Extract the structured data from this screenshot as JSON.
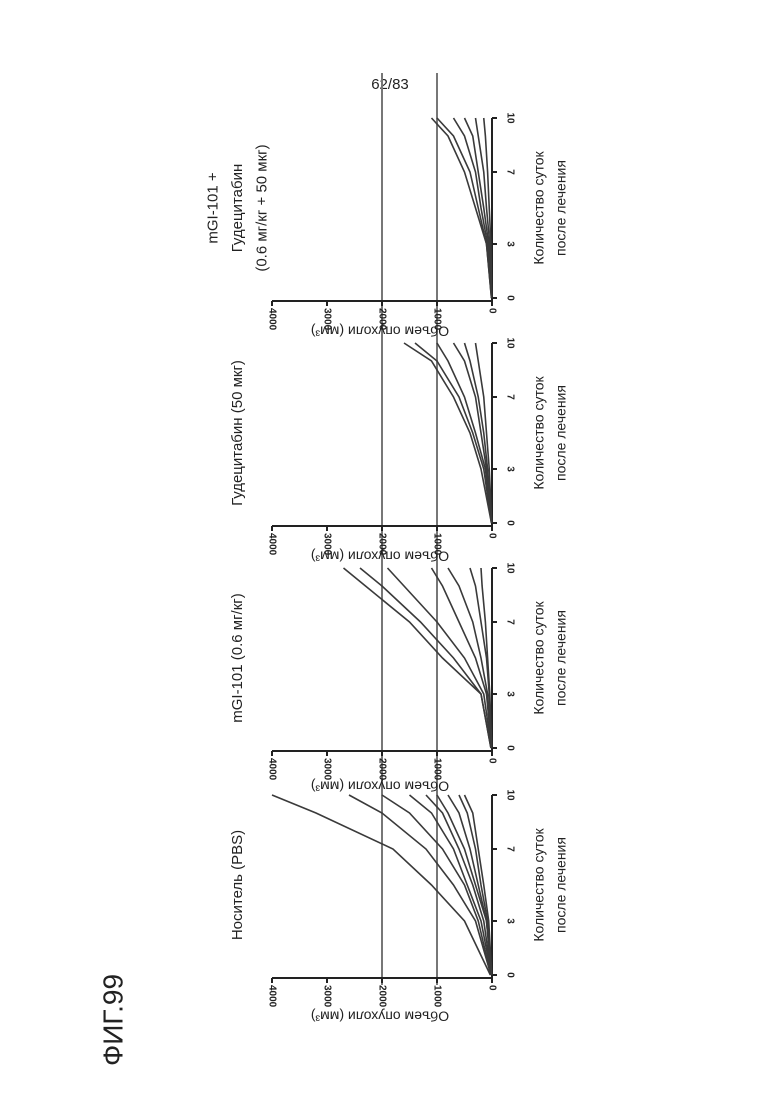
{
  "page_number": "62/83",
  "figure_label": "ФИГ.99",
  "chart_data": [
    {
      "type": "line",
      "title": [
        "Носитель (PBS)"
      ],
      "xlabel": [
        "Количество суток",
        "после лечения"
      ],
      "ylabel": "Объем опухоли (мм³)",
      "x": [
        0,
        3,
        5,
        7,
        9,
        10
      ],
      "xlim": [
        0,
        10
      ],
      "xticks": [
        0,
        3,
        7,
        10
      ],
      "ylim": [
        0,
        4000
      ],
      "yticks": [
        0,
        1000,
        2000,
        3000,
        4000
      ],
      "hlines": [
        1000,
        2000
      ],
      "line_color": "#3a3a3a",
      "series": [
        {
          "values": [
            30,
            500,
            1100,
            1800,
            3200,
            4000
          ]
        },
        {
          "values": [
            20,
            300,
            700,
            1200,
            2000,
            2600
          ]
        },
        {
          "values": [
            20,
            250,
            500,
            900,
            1500,
            2000
          ]
        },
        {
          "values": [
            10,
            200,
            450,
            700,
            1100,
            1500
          ]
        },
        {
          "values": [
            10,
            150,
            350,
            600,
            900,
            1200
          ]
        },
        {
          "values": [
            10,
            100,
            300,
            500,
            800,
            1000
          ]
        },
        {
          "values": [
            10,
            100,
            250,
            400,
            600,
            800
          ]
        },
        {
          "values": [
            5,
            80,
            200,
            300,
            450,
            600
          ]
        },
        {
          "values": [
            5,
            60,
            150,
            250,
            350,
            500
          ]
        }
      ]
    },
    {
      "type": "line",
      "title": [
        "mGI-101 (0.6 мг/кг)"
      ],
      "xlabel": [
        "Количество суток",
        "после лечения"
      ],
      "ylabel": "Объем опухоли (мм³)",
      "x": [
        0,
        3,
        5,
        7,
        9,
        10
      ],
      "xlim": [
        0,
        10
      ],
      "xticks": [
        0,
        3,
        7,
        10
      ],
      "ylim": [
        0,
        4000
      ],
      "yticks": [
        0,
        1000,
        2000,
        3000,
        4000
      ],
      "hlines": [
        1000,
        2000
      ],
      "line_color": "#3a3a3a",
      "series": [
        {
          "values": [
            20,
            200,
            900,
            1500,
            2300,
            2700
          ]
        },
        {
          "values": [
            20,
            200,
            700,
            1300,
            2000,
            2400
          ]
        },
        {
          "values": [
            10,
            150,
            500,
            1000,
            1600,
            1900
          ]
        },
        {
          "values": [
            10,
            100,
            300,
            600,
            900,
            1100
          ]
        },
        {
          "values": [
            10,
            80,
            200,
            350,
            600,
            800
          ]
        },
        {
          "values": [
            5,
            50,
            100,
            200,
            300,
            400
          ]
        },
        {
          "values": [
            5,
            40,
            80,
            120,
            180,
            200
          ]
        }
      ]
    },
    {
      "type": "line",
      "title": [
        "Гудецитабин (50 мкг)"
      ],
      "xlabel": [
        "Количество суток",
        "после лечения"
      ],
      "ylabel": "Объем опухоли (мм³)",
      "x": [
        0,
        3,
        5,
        7,
        9,
        10
      ],
      "xlim": [
        0,
        10
      ],
      "xticks": [
        0,
        3,
        7,
        10
      ],
      "ylim": [
        0,
        4000
      ],
      "yticks": [
        0,
        1000,
        2000,
        3000,
        4000
      ],
      "hlines": [
        1000,
        2000
      ],
      "line_color": "#3a3a3a",
      "series": [
        {
          "values": [
            10,
            200,
            400,
            700,
            1100,
            1600
          ]
        },
        {
          "values": [
            10,
            150,
            350,
            600,
            1000,
            1400
          ]
        },
        {
          "values": [
            10,
            120,
            300,
            500,
            800,
            1000
          ]
        },
        {
          "values": [
            5,
            100,
            200,
            300,
            500,
            700
          ]
        },
        {
          "values": [
            5,
            80,
            150,
            250,
            400,
            500
          ]
        },
        {
          "values": [
            5,
            50,
            100,
            150,
            250,
            300
          ]
        }
      ]
    },
    {
      "type": "line",
      "title": [
        "mGI-101 +",
        "Гудецитабин",
        "(0.6 мг/кг + 50 мкг)"
      ],
      "xlabel": [
        "Количество суток",
        "после лечения"
      ],
      "ylabel": "Объем опухоли (мм³)",
      "x": [
        0,
        3,
        5,
        7,
        9,
        10
      ],
      "xlim": [
        0,
        10
      ],
      "xticks": [
        0,
        3,
        7,
        10
      ],
      "ylim": [
        0,
        4000
      ],
      "yticks": [
        0,
        1000,
        2000,
        3000,
        4000
      ],
      "hlines": [
        1000,
        2000
      ],
      "line_color": "#3a3a3a",
      "series": [
        {
          "values": [
            10,
            100,
            300,
            500,
            800,
            1100
          ]
        },
        {
          "values": [
            10,
            100,
            250,
            400,
            700,
            1000
          ]
        },
        {
          "values": [
            5,
            80,
            200,
            300,
            500,
            700
          ]
        },
        {
          "values": [
            5,
            60,
            150,
            250,
            350,
            500
          ]
        },
        {
          "values": [
            5,
            40,
            100,
            150,
            250,
            300
          ]
        },
        {
          "values": [
            5,
            20,
            50,
            80,
            120,
            150
          ]
        }
      ]
    }
  ]
}
